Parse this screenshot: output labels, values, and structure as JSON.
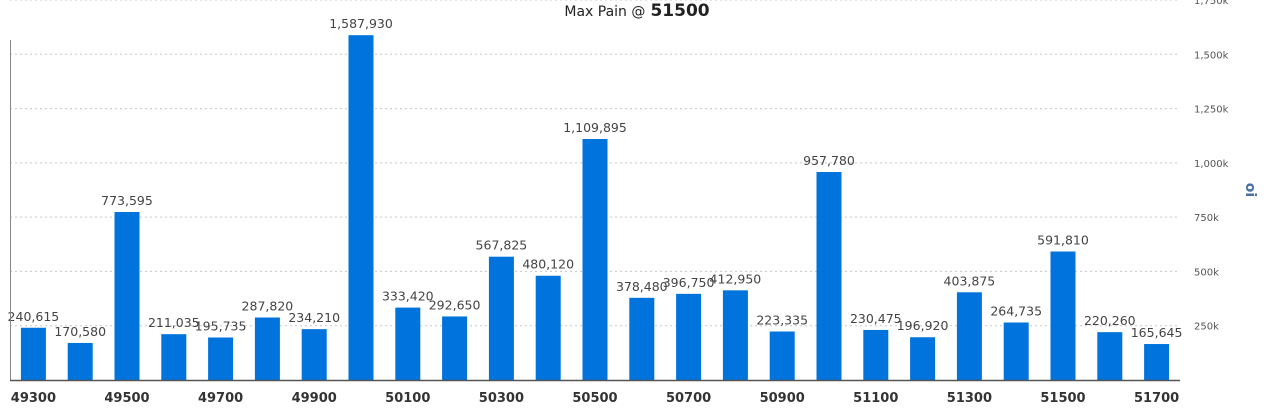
{
  "chart_data": {
    "type": "bar",
    "title_prefix": "Max Pain @",
    "title_strike": "51500",
    "ylabel": "oi",
    "xlabel": "",
    "ylim": [
      0,
      1750000
    ],
    "grid": true,
    "bar_color": "#0073DC",
    "strikes": [
      49300,
      49400,
      49500,
      49600,
      49700,
      49800,
      49900,
      50000,
      50100,
      50200,
      50300,
      50400,
      50500,
      50600,
      50700,
      50800,
      50900,
      51000,
      51100,
      51200,
      51300,
      51400,
      51500,
      51600,
      51700
    ],
    "x_tick_labels": [
      "49300",
      "49500",
      "49700",
      "49900",
      "50100",
      "50300",
      "50500",
      "50700",
      "50900",
      "51100",
      "51300",
      "51500",
      "51700"
    ],
    "values": [
      240615,
      170580,
      773595,
      211035,
      195735,
      287820,
      234210,
      1587930,
      333420,
      292650,
      567825,
      480120,
      1109895,
      378480,
      396750,
      412950,
      223335,
      957780,
      230475,
      196920,
      403875,
      264735,
      591810,
      220260,
      165645
    ],
    "value_labels": [
      "240,615",
      "170,580",
      "773,595",
      "211,035",
      "195,735",
      "287,820",
      "234,210",
      "1,587,930",
      "333,420",
      "292,650",
      "567,825",
      "480,120",
      "1,109,895",
      "378,480",
      "396,750",
      "412,950",
      "223,335",
      "957,780",
      "230,475",
      "196,920",
      "403,875",
      "264,735",
      "591,810",
      "220,260",
      "165,645"
    ],
    "y_ticks": [
      250000,
      500000,
      750000,
      1000000,
      1250000,
      1500000,
      1750000
    ],
    "y_tick_labels": [
      "250k",
      "500k",
      "750k",
      "1,000k",
      "1,250k",
      "1,500k",
      "1,750k"
    ]
  }
}
